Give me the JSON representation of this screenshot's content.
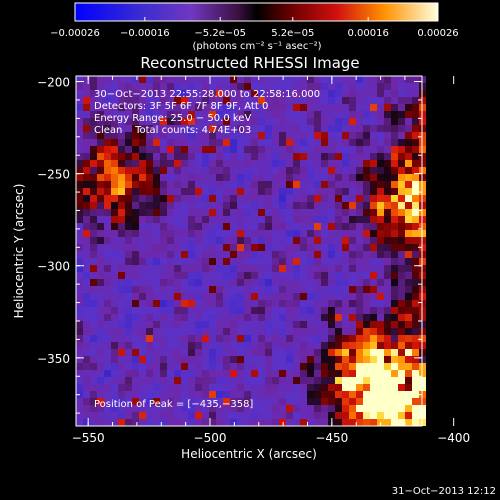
{
  "chart_data": {
    "type": "heatmap",
    "title": "Reconstructed RHESSI Image",
    "xlabel": "Heliocentric X (arcsec)",
    "ylabel": "Heliocentric Y (arcsec)",
    "xlim": [
      -555,
      -413
    ],
    "ylim": [
      -387,
      -197
    ],
    "x_ticks": [
      -550,
      -500,
      -450,
      -400
    ],
    "x_tick_labels": [
      "−550",
      "−500",
      "−450",
      "−400"
    ],
    "y_ticks": [
      -200,
      -250,
      -300,
      -350
    ],
    "y_tick_labels": [
      "−200",
      "−250",
      "−300",
      "−350"
    ],
    "colorbar": {
      "range": [
        -0.00026,
        0.00026
      ],
      "ticks": [
        -0.00026,
        -0.00016,
        -5.2e-05,
        5.2e-05,
        0.00016,
        0.00026
      ],
      "tick_labels": [
        "−0.00026",
        "−0.00016",
        "−5.2e−05",
        "5.2e−05",
        "0.00016",
        "0.00026"
      ],
      "units": "(photons cm⁻² s⁻¹ asec⁻²)"
    },
    "info_lines": [
      "30−Oct−2013 22:55:28.000 to 22:58:16.000",
      "Detectors: 3F 5F 6F 7F 8F 9F, Att 0",
      "Energy Range: 25.0 − 50.0 keV",
      "Clean    Total counts: 4.74E+03"
    ],
    "peak_label": "Position of Peak = [−435,−358]",
    "peak": [
      -435,
      -358
    ],
    "bright_regions": [
      {
        "x": -400,
        "y": -225,
        "level": 0.95
      },
      {
        "x": -418,
        "y": -265,
        "level": 0.8
      },
      {
        "x": -400,
        "y": -318,
        "level": 0.9
      },
      {
        "x": -435,
        "y": -358,
        "level": 1.0
      },
      {
        "x": -420,
        "y": -378,
        "level": 0.85
      },
      {
        "x": -540,
        "y": -250,
        "level": 0.6
      }
    ]
  },
  "footer": {
    "date": "31−Oct−2013 12:12"
  }
}
